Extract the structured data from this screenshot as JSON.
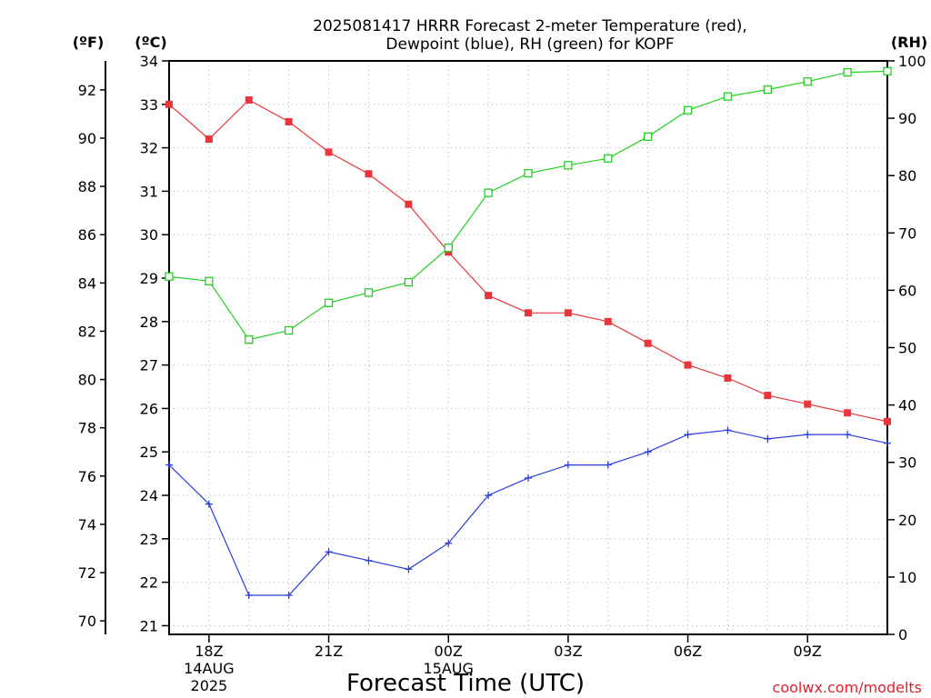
{
  "chart_data": {
    "type": "line",
    "title_lines": [
      "2025081417 HRRR Forecast 2-meter Temperature (red),",
      "Dewpoint (blue), RH (green) for KOPF"
    ],
    "xlabel": "Forecast Time (UTC)",
    "credit": "coolwx.com/modelts",
    "units": {
      "fahrenheit": "(ºF)",
      "celsius": "(ºC)",
      "rh": "(RH)"
    },
    "x_hours": [
      17,
      18,
      19,
      20,
      21,
      22,
      23,
      24,
      25,
      26,
      27,
      28,
      29,
      30,
      31,
      32,
      33,
      34,
      35
    ],
    "x_ticks": [
      {
        "hour": 18,
        "lines": [
          "18Z",
          "14AUG",
          "2025"
        ]
      },
      {
        "hour": 21,
        "lines": [
          "21Z"
        ]
      },
      {
        "hour": 24,
        "lines": [
          "00Z",
          "15AUG"
        ]
      },
      {
        "hour": 27,
        "lines": [
          "03Z"
        ]
      },
      {
        "hour": 30,
        "lines": [
          "06Z"
        ]
      },
      {
        "hour": 33,
        "lines": [
          "09Z"
        ]
      }
    ],
    "celsius_axis": {
      "min": 20.8,
      "max": 34.0,
      "ticks": [
        21,
        22,
        23,
        24,
        25,
        26,
        27,
        28,
        29,
        30,
        31,
        32,
        33,
        34
      ]
    },
    "fahrenheit_ticks": [
      70,
      72,
      74,
      76,
      78,
      80,
      82,
      84,
      86,
      88,
      90,
      92
    ],
    "rh_axis": {
      "min": 0,
      "max": 100,
      "ticks": [
        0,
        10,
        20,
        30,
        40,
        50,
        60,
        70,
        80,
        90,
        100
      ]
    },
    "grid": true,
    "series": [
      {
        "name": "Temperature",
        "color": "#e8363c",
        "marker": "filled-square",
        "axis": "celsius",
        "values": [
          33.0,
          32.2,
          33.1,
          32.6,
          31.9,
          31.4,
          30.7,
          29.6,
          28.6,
          28.2,
          28.2,
          28.0,
          27.5,
          27.0,
          26.7,
          26.3,
          26.1,
          25.9,
          25.7
        ]
      },
      {
        "name": "Dewpoint",
        "color": "#2a3ddc",
        "marker": "plus",
        "axis": "celsius",
        "values": [
          24.7,
          23.8,
          21.7,
          21.7,
          22.7,
          22.5,
          22.3,
          22.9,
          24.0,
          24.4,
          24.7,
          24.7,
          25.0,
          25.4,
          25.5,
          25.3,
          25.4,
          25.4,
          25.2
        ]
      },
      {
        "name": "RH",
        "color": "#22d022",
        "marker": "open-square",
        "axis": "rh",
        "values": [
          62.4,
          61.6,
          51.4,
          53.0,
          57.8,
          59.6,
          61.4,
          67.4,
          77.0,
          80.4,
          81.8,
          83.0,
          86.8,
          91.4,
          93.8,
          95.0,
          96.4,
          98.0,
          98.2
        ]
      }
    ]
  }
}
